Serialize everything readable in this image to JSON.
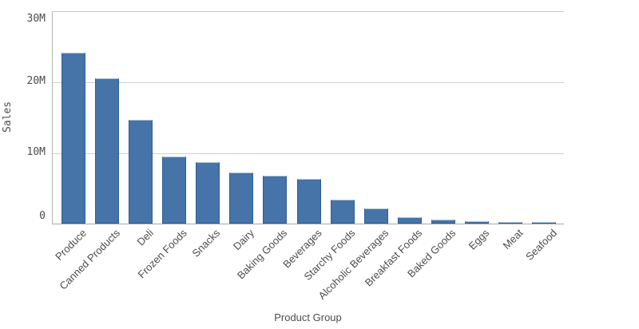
{
  "chart_data": {
    "type": "bar",
    "title": "",
    "xlabel": "Product Group",
    "ylabel": "Sales",
    "categories": [
      "Produce",
      "Canned Products",
      "Deli",
      "Frozen Foods",
      "Snacks",
      "Dairy",
      "Baking Goods",
      "Beverages",
      "Starchy Foods",
      "Alcoholic Beverages",
      "Breakfast Foods",
      "Baked Goods",
      "Eggs",
      "Meat",
      "Seafood"
    ],
    "values": [
      24.2,
      20.6,
      14.7,
      9.5,
      8.7,
      7.2,
      6.8,
      6.3,
      3.4,
      2.2,
      0.9,
      0.6,
      0.4,
      0.2,
      0.1
    ],
    "value_unit": "M",
    "ylim": [
      0,
      30
    ],
    "yticks": [
      {
        "value": 0,
        "label": "0"
      },
      {
        "value": 10,
        "label": "10M"
      },
      {
        "value": 20,
        "label": "20M"
      },
      {
        "value": 30,
        "label": "30M"
      }
    ],
    "grid": true,
    "legend": false,
    "colors": {
      "bar_fill": "#4673a8",
      "bar_border": "#2e5f94",
      "bar_top_highlight": "#b3c4d6",
      "gridline": "#d0d0d0",
      "axis_line": "#a8a8a8",
      "text": "#4d4d4d"
    }
  }
}
